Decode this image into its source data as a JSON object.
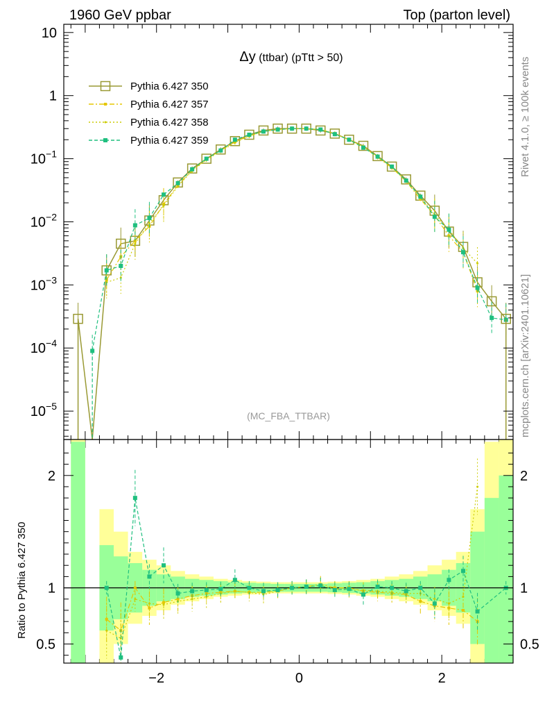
{
  "header": {
    "left": "1960 GeV ppbar",
    "right": "Top (parton level)"
  },
  "side_labels": {
    "rivet": "Rivet 4.1.0, ≥ 100k events",
    "mcplots": "mcplots.cern.ch [arXiv:2401.10621]"
  },
  "chart_data": {
    "type": "line",
    "title_main": "Δy",
    "title_rest": " (ttbar) (pTtt > 50)",
    "watermark": "(MC_FBA_TTBAR)",
    "xlabel": "",
    "ylabel": "",
    "ratio_ylabel": "Ratio to Pythia 6.427 350",
    "xlim": [
      -3.3,
      3.0
    ],
    "main_yrange_log10": [
      -5.45,
      1.13
    ],
    "ratio_ylim": [
      0.33,
      2.32
    ],
    "x_ticks": [
      "-2",
      "0",
      "2"
    ],
    "x_tick_values": [
      -2,
      0,
      2
    ],
    "main_y_ticks": [
      {
        "v": 1,
        "base": "10",
        "exp": ""
      },
      {
        "v": 0,
        "base": "1",
        "exp": ""
      },
      {
        "v": -1,
        "base": "10",
        "exp": "−1"
      },
      {
        "v": -2,
        "base": "10",
        "exp": "−2"
      },
      {
        "v": -3,
        "base": "10",
        "exp": "−3"
      },
      {
        "v": -4,
        "base": "10",
        "exp": "−4"
      },
      {
        "v": -5,
        "base": "10",
        "exp": "−5"
      }
    ],
    "ratio_y_ticks": [
      {
        "v": 2,
        "label": "2"
      },
      {
        "v": 1,
        "label": "1"
      },
      {
        "v": 0.5,
        "label": "0.5"
      }
    ],
    "x": [
      -3.1,
      -2.9,
      -2.7,
      -2.5,
      -2.3,
      -2.1,
      -1.9,
      -1.7,
      -1.5,
      -1.3,
      -1.1,
      -0.9,
      -0.7,
      -0.5,
      -0.3,
      -0.1,
      0.1,
      0.3,
      0.5,
      0.7,
      0.9,
      1.1,
      1.3,
      1.5,
      1.7,
      1.9,
      2.1,
      2.3,
      2.5,
      2.7,
      2.9
    ],
    "series": [
      {
        "name": "Pythia 6.427 350",
        "color": "#999933",
        "style": "solid",
        "marker": "open-square",
        "values": [
          0.00029,
          1e-07,
          0.0017,
          0.0045,
          0.005,
          0.0105,
          0.022,
          0.042,
          0.07,
          0.1,
          0.14,
          0.19,
          0.24,
          0.28,
          0.3,
          0.3,
          0.3,
          0.28,
          0.25,
          0.2,
          0.16,
          0.11,
          0.075,
          0.047,
          0.026,
          0.015,
          0.007,
          0.004,
          0.0011,
          0.00055,
          0.00029
        ],
        "ratio": [
          null,
          null,
          null,
          null,
          null,
          null,
          null,
          null,
          null,
          null,
          null,
          null,
          null,
          null,
          null,
          null,
          null,
          null,
          null,
          null,
          null,
          null,
          null,
          null,
          null,
          null,
          null,
          null,
          null,
          null,
          null
        ]
      },
      {
        "name": "Pythia 6.427 357",
        "color": "#e5c600",
        "style": "dashdot",
        "marker": "small-square",
        "values": [
          null,
          null,
          0.0012,
          0.0028,
          0.005,
          0.0085,
          0.019,
          0.038,
          0.066,
          0.098,
          0.135,
          0.185,
          0.23,
          0.27,
          0.29,
          0.3,
          0.3,
          0.29,
          0.25,
          0.2,
          0.155,
          0.105,
          0.072,
          0.044,
          0.023,
          0.0125,
          0.006,
          0.0033,
          0.0008,
          null,
          null
        ],
        "ratio": [
          null,
          null,
          0.72,
          0.62,
          1.0,
          0.82,
          0.87,
          0.9,
          0.93,
          0.95,
          0.96,
          0.97,
          0.96,
          0.96,
          0.97,
          1.0,
          1.01,
          1.03,
          1.0,
          1.0,
          0.97,
          0.96,
          0.95,
          0.94,
          0.88,
          0.84,
          0.82,
          0.8,
          0.7,
          null,
          null
        ]
      },
      {
        "name": "Pythia 6.427 358",
        "color": "#cccc00",
        "style": "dotted",
        "marker": "tiny-dot",
        "values": [
          null,
          null,
          0.0011,
          0.0013,
          0.0045,
          0.0095,
          0.018,
          0.037,
          0.064,
          0.096,
          0.132,
          0.18,
          0.23,
          0.27,
          0.29,
          0.3,
          0.3,
          0.29,
          0.25,
          0.2,
          0.155,
          0.108,
          0.073,
          0.045,
          0.025,
          0.013,
          0.0075,
          0.0038,
          0.0022,
          null,
          null
        ],
        "ratio": [
          null,
          null,
          0.62,
          0.55,
          0.9,
          0.86,
          0.85,
          0.88,
          0.9,
          0.92,
          0.95,
          0.97,
          0.96,
          0.94,
          0.97,
          1.0,
          1.01,
          1.02,
          0.99,
          0.98,
          0.98,
          0.97,
          0.96,
          0.95,
          0.95,
          0.9,
          0.86,
          0.92,
          1.9,
          null,
          null
        ]
      },
      {
        "name": "Pythia 6.427 359",
        "color": "#1fbf7f",
        "style": "dashed",
        "marker": "filled-square",
        "values": [
          null,
          9e-05,
          0.0017,
          0.002,
          0.0088,
          0.0115,
          0.027,
          0.041,
          0.068,
          0.1,
          0.135,
          0.2,
          0.24,
          0.27,
          0.29,
          0.3,
          0.3,
          0.29,
          0.245,
          0.2,
          0.15,
          0.108,
          0.075,
          0.045,
          0.025,
          0.012,
          0.0075,
          0.0033,
          0.0009,
          0.0003,
          0.00028
        ],
        "ratio": [
          null,
          null,
          1.0,
          0.38,
          1.8,
          1.1,
          1.2,
          0.95,
          0.97,
          0.98,
          0.99,
          1.07,
          1.0,
          0.97,
          0.98,
          1.0,
          1.01,
          1.02,
          0.98,
          0.99,
          0.94,
          1.01,
          1.0,
          0.97,
          1.0,
          0.86,
          1.07,
          1.15,
          0.79,
          null,
          1.0
        ]
      }
    ],
    "uncertainty_bands": {
      "x_edges": [
        -3.2,
        -3.0,
        -2.8,
        -2.6,
        -2.4,
        -2.2,
        -2.0,
        -1.8,
        -1.6,
        -1.4,
        -1.2,
        -1.0,
        -0.8,
        -0.6,
        -0.4,
        -0.2,
        0.0,
        0.2,
        0.4,
        0.6,
        0.8,
        1.0,
        1.2,
        1.4,
        1.6,
        1.8,
        2.0,
        2.2,
        2.4,
        2.6,
        2.8,
        3.0
      ],
      "green_half_width": [
        1.3,
        0.0,
        0.38,
        0.28,
        0.22,
        0.16,
        0.12,
        0.1,
        0.08,
        0.07,
        0.06,
        0.05,
        0.045,
        0.04,
        0.035,
        0.035,
        0.035,
        0.035,
        0.04,
        0.045,
        0.05,
        0.06,
        0.07,
        0.08,
        0.1,
        0.12,
        0.16,
        0.22,
        0.5,
        0.8,
        1.0
      ],
      "yellow_half_width": [
        1.5,
        0.0,
        0.7,
        0.5,
        0.32,
        0.25,
        0.2,
        0.15,
        0.12,
        0.1,
        0.08,
        0.07,
        0.06,
        0.055,
        0.05,
        0.05,
        0.05,
        0.05,
        0.055,
        0.06,
        0.07,
        0.08,
        0.1,
        0.12,
        0.15,
        0.2,
        0.25,
        0.32,
        0.7,
        1.3,
        1.5
      ]
    }
  }
}
